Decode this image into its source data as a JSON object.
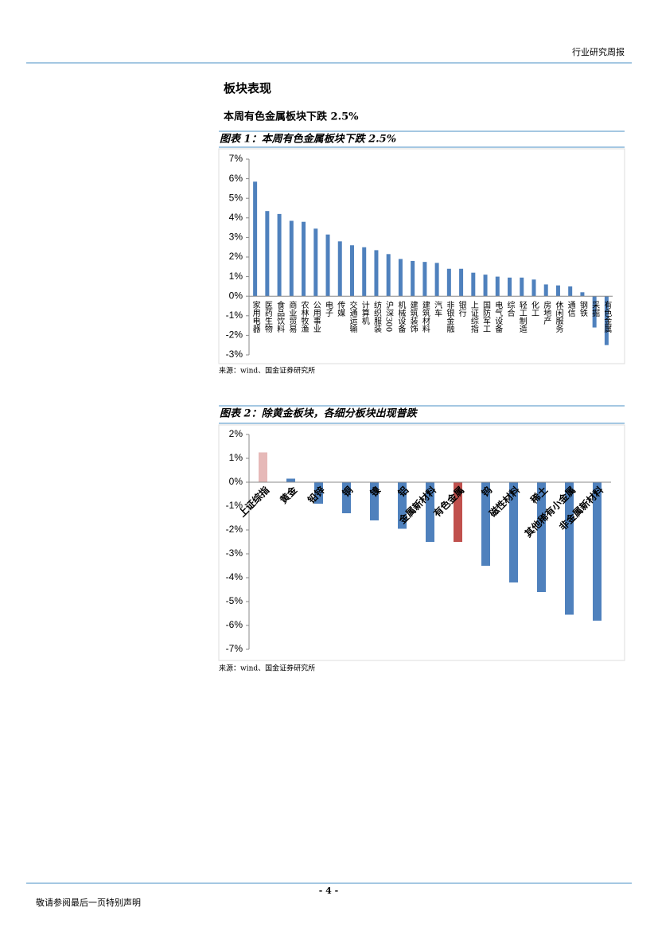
{
  "header": {
    "report_type": "行业研究周报"
  },
  "section_title": "板块表现",
  "subtitle": "本周有色金属板块下跌 2.5%",
  "chart_data": [
    {
      "type": "bar",
      "title": "图表 1：本周有色金属板块下跌 2.5%",
      "source": "来源：wind、国金证券研究所",
      "categories": [
        "家用电器",
        "医药生物",
        "食品饮料",
        "商业贸易",
        "农林牧渔",
        "公用事业",
        "电子",
        "传媒",
        "交通运输",
        "计算机",
        "纺织服装",
        "沪深300",
        "机械设备",
        "建筑装饰",
        "建筑材料",
        "汽车",
        "非银金融",
        "银行",
        "上证综指",
        "国防军工",
        "电气设备",
        "综合",
        "轻工制造",
        "化工",
        "房地产",
        "休闲服务",
        "通信",
        "钢铁",
        "采掘",
        "有色金属"
      ],
      "values": [
        5.85,
        4.35,
        4.2,
        3.85,
        3.8,
        3.45,
        3.15,
        2.8,
        2.6,
        2.5,
        2.35,
        2.15,
        1.9,
        1.8,
        1.75,
        1.7,
        1.4,
        1.4,
        1.2,
        1.1,
        1.0,
        0.95,
        0.95,
        0.85,
        0.6,
        0.55,
        0.5,
        0.2,
        -1.6,
        -2.5
      ],
      "color": "#4f81bd",
      "label_style": "vertical",
      "ylim": [
        -3,
        7
      ],
      "yticks": [
        {
          "value": -3,
          "label": "-3%"
        },
        {
          "value": -2,
          "label": "-2%"
        },
        {
          "value": -1,
          "label": "-1%"
        },
        {
          "value": 0,
          "label": "0%"
        },
        {
          "value": 1,
          "label": "1%"
        },
        {
          "value": 2,
          "label": "2%"
        },
        {
          "value": 3,
          "label": "3%"
        },
        {
          "value": 4,
          "label": "4%"
        },
        {
          "value": 5,
          "label": "5%"
        },
        {
          "value": 6,
          "label": "6%"
        },
        {
          "value": 7,
          "label": "7%"
        }
      ]
    },
    {
      "type": "bar",
      "title": "图表 2：除黄金板块，各细分板块出现普跌",
      "source": "来源：wind、国金证券研究所",
      "categories": [
        "上证综指",
        "黄金",
        "铅锌",
        "铜",
        "镍",
        "铝",
        "金属新材料",
        "有色金属",
        "钨",
        "磁性材料",
        "稀土",
        "其他稀有小金属",
        "非金属新材料"
      ],
      "values": [
        1.25,
        0.15,
        -0.9,
        -1.3,
        -1.6,
        -1.95,
        -2.5,
        -2.5,
        -3.5,
        -4.2,
        -4.6,
        -5.55,
        -5.8
      ],
      "colors": [
        "#e6b9b8",
        "#4f81bd",
        "#4f81bd",
        "#4f81bd",
        "#4f81bd",
        "#4f81bd",
        "#4f81bd",
        "#c0504d",
        "#4f81bd",
        "#4f81bd",
        "#4f81bd",
        "#4f81bd",
        "#4f81bd"
      ],
      "label_style": "diagonal",
      "ylim": [
        -7,
        2
      ],
      "yticks": [
        {
          "value": -7,
          "label": "-7%"
        },
        {
          "value": -6,
          "label": "-6%"
        },
        {
          "value": -5,
          "label": "-5%"
        },
        {
          "value": -4,
          "label": "-4%"
        },
        {
          "value": -3,
          "label": "-3%"
        },
        {
          "value": -2,
          "label": "-2%"
        },
        {
          "value": -1,
          "label": "-1%"
        },
        {
          "value": 0,
          "label": "0%"
        },
        {
          "value": 1,
          "label": "1%"
        },
        {
          "value": 2,
          "label": "2%"
        }
      ]
    }
  ],
  "footer": {
    "page_number": "- 4 -",
    "disclaimer": "敬请参阅最后一页特别声明"
  }
}
